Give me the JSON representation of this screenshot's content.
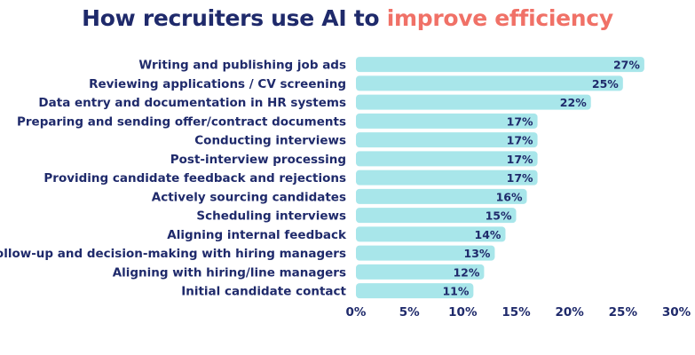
{
  "title": {
    "part1": "How recruiters use AI to ",
    "part2": "improve efficiency"
  },
  "colors": {
    "bar": "#a8e6ea",
    "text": "#1f2a6b",
    "accent": "#f07167"
  },
  "chart_data": {
    "type": "bar",
    "orientation": "horizontal",
    "categories": [
      "Writing and publishing job ads",
      "Reviewing applications / CV screening",
      "Data entry and documentation in HR systems",
      "Preparing and sending offer/contract documents",
      "Conducting interviews",
      "Post-interview processing",
      "Providing candidate feedback and rejections",
      "Actively sourcing candidates",
      "Scheduling interviews",
      "Aligning internal feedback",
      "Follow-up and decision-making with hiring managers",
      "Aligning with hiring/line managers",
      "Initial candidate contact"
    ],
    "values": [
      27,
      25,
      22,
      17,
      17,
      17,
      17,
      16,
      15,
      14,
      13,
      12,
      11
    ],
    "value_labels": [
      "27%",
      "25%",
      "22%",
      "17%",
      "17%",
      "17%",
      "17%",
      "16%",
      "15%",
      "14%",
      "13%",
      "12%",
      "11%"
    ],
    "xlim": [
      0,
      30
    ],
    "xticks": [
      0,
      5,
      10,
      15,
      20,
      25,
      30
    ],
    "xtick_labels": [
      "0%",
      "5%",
      "10%",
      "15%",
      "20%",
      "25%",
      "30%"
    ],
    "grid": false,
    "legend": "none"
  }
}
